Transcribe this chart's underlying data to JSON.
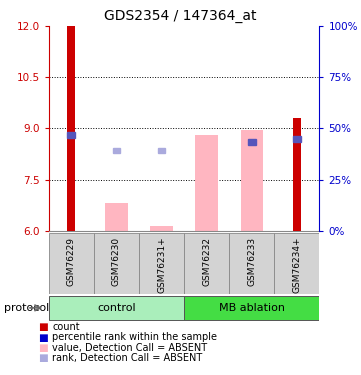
{
  "title": "GDS2354 / 147364_at",
  "samples": [
    "GSM76229",
    "GSM76230",
    "GSM76231+",
    "GSM76232",
    "GSM76233",
    "GSM76234+"
  ],
  "ylim_left": [
    6,
    12
  ],
  "ylim_right": [
    0,
    100
  ],
  "yticks_left": [
    6,
    7.5,
    9,
    10.5,
    12
  ],
  "yticks_right": [
    0,
    25,
    50,
    75,
    100
  ],
  "left_axis_color": "#cc0000",
  "right_axis_color": "#0000cc",
  "bar_red_values": [
    12,
    null,
    null,
    null,
    null,
    9.3
  ],
  "bar_pink_values": [
    null,
    6.8,
    6.15,
    8.8,
    8.95,
    null
  ],
  "blue_square_values": [
    8.8,
    null,
    null,
    null,
    8.6,
    8.7
  ],
  "lavender_square_values": [
    null,
    8.35,
    8.35,
    null,
    null,
    null
  ],
  "bar_bottom": 6,
  "bar_red_color": "#cc0000",
  "bar_pink_color": "#ffb6c1",
  "blue_sq_color": "#5555bb",
  "lavender_sq_color": "#aaaadd",
  "sample_bg_color": "#d3d3d3",
  "sample_border_color": "#888888",
  "ctrl_color": "#aaeebb",
  "mb_color": "#44dd44",
  "legend_colors": [
    "#cc0000",
    "#0000cc",
    "#ffb6c1",
    "#aaaadd"
  ],
  "legend_labels": [
    "count",
    "percentile rank within the sample",
    "value, Detection Call = ABSENT",
    "rank, Detection Call = ABSENT"
  ]
}
